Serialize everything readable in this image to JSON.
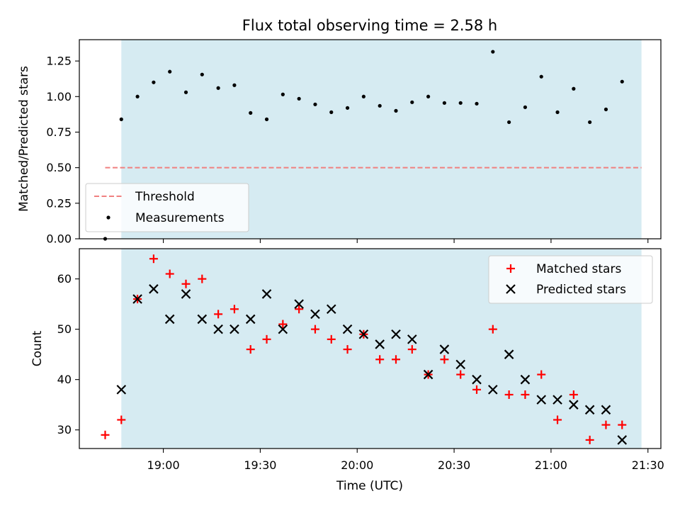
{
  "chart_data": [
    {
      "type": "scatter",
      "title": "Flux total observing time = 2.58 h",
      "xlabel": "",
      "ylabel": "Matched/Predicted stars",
      "ylim": [
        0,
        1.4
      ],
      "yticks": [
        "0.00",
        "0.25",
        "0.50",
        "0.75",
        "1.00",
        "1.25"
      ],
      "xlim": [
        "18:34",
        "21:34"
      ],
      "shaded_span": [
        "18:47",
        "21:28"
      ],
      "threshold": {
        "name": "Threshold",
        "value": 0.5,
        "from": "18:42",
        "to": "21:28",
        "color": "#f08080",
        "style": "dashed"
      },
      "legend_position": "lower-left",
      "series": [
        {
          "name": "Measurements",
          "color": "#000000",
          "marker": "dot",
          "points": [
            [
              "18:42",
              0.0
            ],
            [
              "18:47",
              0.84
            ],
            [
              "18:52",
              1.0
            ],
            [
              "18:57",
              1.1
            ],
            [
              "19:02",
              1.175
            ],
            [
              "19:07",
              1.03
            ],
            [
              "19:12",
              1.155
            ],
            [
              "19:17",
              1.06
            ],
            [
              "19:22",
              1.08
            ],
            [
              "19:27",
              0.885
            ],
            [
              "19:32",
              0.84
            ],
            [
              "19:37",
              1.015
            ],
            [
              "19:42",
              0.985
            ],
            [
              "19:47",
              0.945
            ],
            [
              "19:52",
              0.89
            ],
            [
              "19:57",
              0.92
            ],
            [
              "20:02",
              1.0
            ],
            [
              "20:07",
              0.935
            ],
            [
              "20:12",
              0.9
            ],
            [
              "20:17",
              0.96
            ],
            [
              "20:22",
              1.0
            ],
            [
              "20:27",
              0.955
            ],
            [
              "20:32",
              0.955
            ],
            [
              "20:37",
              0.95
            ],
            [
              "20:42",
              1.315
            ],
            [
              "20:47",
              0.82
            ],
            [
              "20:52",
              0.925
            ],
            [
              "20:57",
              1.14
            ],
            [
              "21:02",
              0.89
            ],
            [
              "21:07",
              1.055
            ],
            [
              "21:12",
              0.82
            ],
            [
              "21:17",
              0.91
            ],
            [
              "21:22",
              1.105
            ]
          ]
        }
      ]
    },
    {
      "type": "scatter",
      "title": "",
      "xlabel": "Time (UTC)",
      "ylabel": "Count",
      "ylim": [
        26.3,
        66
      ],
      "yticks": [
        "30",
        "40",
        "50",
        "60"
      ],
      "xlim": [
        "18:34",
        "21:34"
      ],
      "xticks": [
        "19:00",
        "19:30",
        "20:00",
        "20:30",
        "21:00",
        "21:30"
      ],
      "shaded_span": [
        "18:47",
        "21:28"
      ],
      "legend_position": "upper-right",
      "series": [
        {
          "name": "Matched stars",
          "color": "#ff0000",
          "marker": "plus",
          "points": [
            [
              "18:42",
              29
            ],
            [
              "18:47",
              32
            ],
            [
              "18:52",
              56
            ],
            [
              "18:57",
              64
            ],
            [
              "19:02",
              61
            ],
            [
              "19:07",
              59
            ],
            [
              "19:12",
              60
            ],
            [
              "19:17",
              53
            ],
            [
              "19:22",
              54
            ],
            [
              "19:27",
              46
            ],
            [
              "19:32",
              48
            ],
            [
              "19:37",
              51
            ],
            [
              "19:42",
              54
            ],
            [
              "19:47",
              50
            ],
            [
              "19:52",
              48
            ],
            [
              "19:57",
              46
            ],
            [
              "20:02",
              49
            ],
            [
              "20:07",
              44
            ],
            [
              "20:12",
              44
            ],
            [
              "20:17",
              46
            ],
            [
              "20:22",
              41
            ],
            [
              "20:27",
              44
            ],
            [
              "20:32",
              41
            ],
            [
              "20:37",
              38
            ],
            [
              "20:42",
              50
            ],
            [
              "20:47",
              37
            ],
            [
              "20:52",
              37
            ],
            [
              "20:57",
              41
            ],
            [
              "21:02",
              32
            ],
            [
              "21:07",
              37
            ],
            [
              "21:12",
              28
            ],
            [
              "21:17",
              31
            ],
            [
              "21:22",
              31
            ]
          ]
        },
        {
          "name": "Predicted stars",
          "color": "#000000",
          "marker": "x",
          "points": [
            [
              "18:47",
              38
            ],
            [
              "18:52",
              56
            ],
            [
              "18:57",
              58
            ],
            [
              "19:02",
              52
            ],
            [
              "19:07",
              57
            ],
            [
              "19:12",
              52
            ],
            [
              "19:17",
              50
            ],
            [
              "19:22",
              50
            ],
            [
              "19:27",
              52
            ],
            [
              "19:32",
              57
            ],
            [
              "19:37",
              50
            ],
            [
              "19:42",
              55
            ],
            [
              "19:47",
              53
            ],
            [
              "19:52",
              54
            ],
            [
              "19:57",
              50
            ],
            [
              "20:02",
              49
            ],
            [
              "20:07",
              47
            ],
            [
              "20:12",
              49
            ],
            [
              "20:17",
              48
            ],
            [
              "20:22",
              41
            ],
            [
              "20:27",
              46
            ],
            [
              "20:32",
              43
            ],
            [
              "20:37",
              40
            ],
            [
              "20:42",
              38
            ],
            [
              "20:47",
              45
            ],
            [
              "20:52",
              40
            ],
            [
              "20:57",
              36
            ],
            [
              "21:02",
              36
            ],
            [
              "21:07",
              35
            ],
            [
              "21:12",
              34
            ],
            [
              "21:17",
              34
            ],
            [
              "21:22",
              28
            ]
          ]
        }
      ]
    }
  ]
}
